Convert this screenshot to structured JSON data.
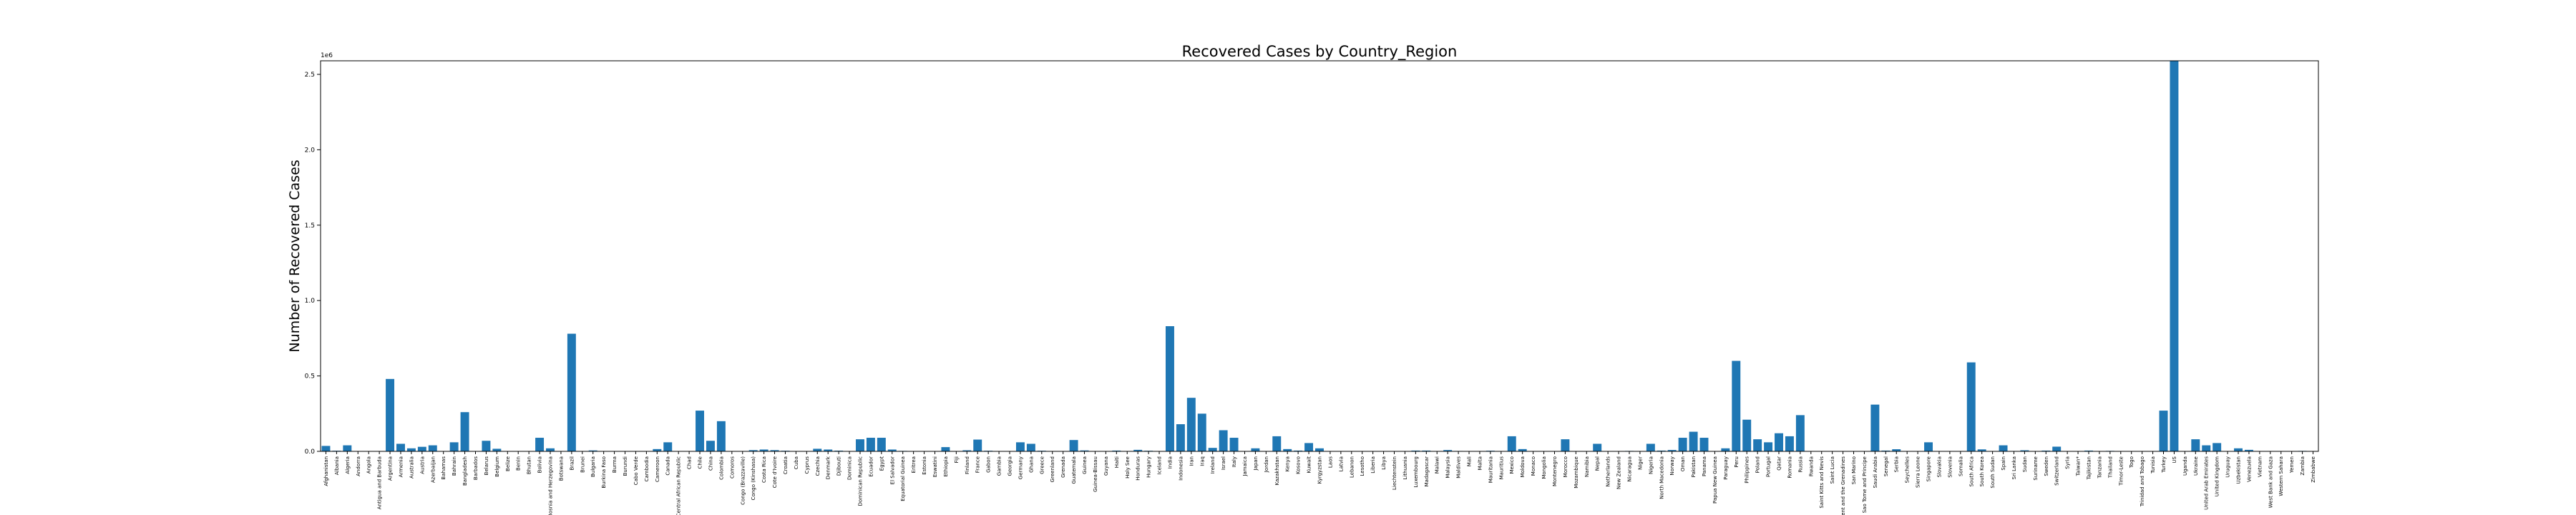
{
  "chart_data": {
    "type": "bar",
    "title": "Recovered Cases by Country_Region",
    "ylabel": "Number of Recovered Cases",
    "y_offset_label": "1e6",
    "color": "#1f77b4",
    "categories": [
      "Afghanistan",
      "Albania",
      "Algeria",
      "Andorra",
      "Angola",
      "Antigua and Barbuda",
      "Argentina",
      "Armenia",
      "Australia",
      "Austria",
      "Azerbaijan",
      "Bahamas",
      "Bahrain",
      "Bangladesh",
      "Barbados",
      "Belarus",
      "Belgium",
      "Belize",
      "Benin",
      "Bhutan",
      "Bolivia",
      "Bosnia and Herzegovina",
      "Botswana",
      "Brazil",
      "Brunei",
      "Bulgaria",
      "Burkina Faso",
      "Burma",
      "Burundi",
      "Cabo Verde",
      "Cambodia",
      "Cameroon",
      "Canada",
      "Central African Republic",
      "Chad",
      "Chile",
      "China",
      "Colombia",
      "Comoros",
      "Congo (Brazzaville)",
      "Congo (Kinshasa)",
      "Costa Rica",
      "Cote d'Ivoire",
      "Croatia",
      "Cuba",
      "Cyprus",
      "Czechia",
      "Denmark",
      "Djibouti",
      "Dominica",
      "Dominican Republic",
      "Ecuador",
      "Egypt",
      "El Salvador",
      "Equatorial Guinea",
      "Eritrea",
      "Estonia",
      "Eswatini",
      "Ethiopia",
      "Fiji",
      "Finland",
      "France",
      "Gabon",
      "Gambia",
      "Georgia",
      "Germany",
      "Ghana",
      "Greece",
      "Greenland",
      "Grenada",
      "Guatemala",
      "Guinea",
      "Guinea-Bissau",
      "Guyana",
      "Haiti",
      "Holy See",
      "Honduras",
      "Hungary",
      "Iceland",
      "India",
      "Indonesia",
      "Iran",
      "Iraq",
      "Ireland",
      "Israel",
      "Italy",
      "Jamaica",
      "Japan",
      "Jordan",
      "Kazakhstan",
      "Kenya",
      "Kosovo",
      "Kuwait",
      "Kyrgyzstan",
      "Laos",
      "Latvia",
      "Lebanon",
      "Lesotho",
      "Liberia",
      "Libya",
      "Liechtenstein",
      "Lithuania",
      "Luxembourg",
      "Madagascar",
      "Malawi",
      "Malaysia",
      "Maldives",
      "Mali",
      "Malta",
      "Mauritania",
      "Mauritius",
      "Mexico",
      "Moldova",
      "Monaco",
      "Mongolia",
      "Montenegro",
      "Morocco",
      "Mozambique",
      "Namibia",
      "Nepal",
      "Netherlands",
      "New Zealand",
      "Nicaragua",
      "Niger",
      "Nigeria",
      "North Macedonia",
      "Norway",
      "Oman",
      "Pakistan",
      "Panama",
      "Papua New Guinea",
      "Paraguay",
      "Peru",
      "Philippines",
      "Poland",
      "Portugal",
      "Qatar",
      "Romania",
      "Russia",
      "Rwanda",
      "Saint Kitts and Nevis",
      "Saint Lucia",
      "Saint Vincent and the Grenadines",
      "San Marino",
      "Sao Tome and Principe",
      "Saudi Arabia",
      "Senegal",
      "Serbia",
      "Seychelles",
      "Sierra Leone",
      "Singapore",
      "Slovakia",
      "Slovenia",
      "Somalia",
      "South Africa",
      "South Korea",
      "South Sudan",
      "Spain",
      "Sri Lanka",
      "Sudan",
      "Suriname",
      "Sweden",
      "Switzerland",
      "Syria",
      "Taiwan*",
      "Tajikistan",
      "Tanzania",
      "Thailand",
      "Timor-Leste",
      "Togo",
      "Trinidad and Tobago",
      "Tunisia",
      "Turkey",
      "US",
      "Uganda",
      "Ukraine",
      "United Arab Emirates",
      "United Kingdom",
      "Uruguay",
      "Uzbekistan",
      "Venezuela",
      "Vietnam",
      "West Bank and Gaza",
      "Western Sahara",
      "Yemen",
      "Zambia",
      "Zimbabwe"
    ],
    "values": [
      36000,
      4000,
      40000,
      800,
      300,
      80,
      480000,
      50000,
      20000,
      30000,
      40000,
      100,
      60000,
      260000,
      100,
      70000,
      17000,
      30,
      1000,
      90,
      90000,
      20000,
      40,
      780000,
      140,
      6000,
      900,
      300,
      300,
      1500,
      200,
      15000,
      60000,
      1500,
      800,
      270000,
      70000,
      200000,
      300,
      2000,
      8000,
      12000,
      8000,
      4000,
      2300,
      900,
      17000,
      12000,
      4600,
      18,
      80000,
      90000,
      90000,
      12000,
      3000,
      190,
      1900,
      1000,
      28000,
      18,
      6900,
      78000,
      4000,
      60,
      900,
      60000,
      50000,
      4000,
      13,
      23,
      75000,
      6000,
      800,
      180,
      5000,
      12,
      10000,
      3900,
      1800,
      830000,
      180000,
      355000,
      250000,
      23000,
      140000,
      90000,
      750,
      20000,
      1000,
      100000,
      15000,
      5000,
      55000,
      20000,
      20,
      1000,
      2000,
      200,
      700,
      600,
      80,
      1700,
      5000,
      5000,
      1600,
      8600,
      2600,
      2000,
      700,
      4000,
      330,
      100000,
      15000,
      100,
      220,
      1000,
      80000,
      500,
      30,
      50000,
      200,
      1500,
      2900,
      1000,
      50000,
      5000,
      9000,
      90000,
      130000,
      90000,
      30,
      20000,
      600000,
      210000,
      80000,
      60000,
      120000,
      100000,
      240000,
      1500,
      17,
      20,
      40,
      650,
      700,
      310000,
      5000,
      14000,
      80,
      1400,
      60000,
      1600,
      1800,
      1500,
      590000,
      13000,
      600,
      40000,
      2500,
      7000,
      1000,
      4900,
      31000,
      300,
      440,
      5000,
      180,
      3100,
      24,
      600,
      130,
      1000,
      270000,
      2590000,
      1000,
      80000,
      40000,
      55000,
      1000,
      20000,
      10000,
      300,
      2000,
      8,
      900,
      3000,
      1000
    ],
    "ylim": [
      0,
      2590000
    ],
    "yticks": [
      {
        "value": 0,
        "label": "0.0"
      },
      {
        "value": 500000,
        "label": "0.5"
      },
      {
        "value": 1000000,
        "label": "1.0"
      },
      {
        "value": 1500000,
        "label": "1.5"
      },
      {
        "value": 2000000,
        "label": "2.0"
      },
      {
        "value": 2500000,
        "label": "2.5"
      }
    ],
    "grid": false
  }
}
